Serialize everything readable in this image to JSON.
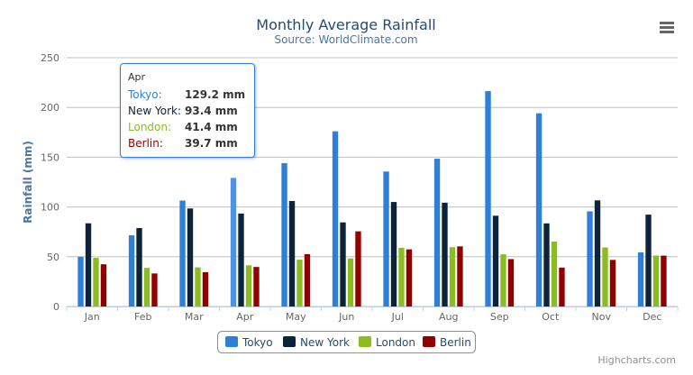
{
  "chart_data": {
    "type": "bar",
    "title": "Monthly Average Rainfall",
    "subtitle": "Source: WorldClimate.com",
    "xlabel": "",
    "ylabel": "Rainfall (mm)",
    "ylim": [
      0,
      250
    ],
    "yticks": [
      "0",
      "50",
      "100",
      "150",
      "200",
      "250"
    ],
    "grid": true,
    "legend_position": "bottom",
    "categories": [
      "Jan",
      "Feb",
      "Mar",
      "Apr",
      "May",
      "Jun",
      "Jul",
      "Aug",
      "Sep",
      "Oct",
      "Nov",
      "Dec"
    ],
    "series": [
      {
        "name": "Tokyo",
        "color": "#2f7ed8",
        "values": [
          49.9,
          71.5,
          106.4,
          129.2,
          144.0,
          176.0,
          135.6,
          148.5,
          216.4,
          194.1,
          95.6,
          54.4
        ]
      },
      {
        "name": "New York",
        "color": "#0d233a",
        "values": [
          83.6,
          78.8,
          98.5,
          93.4,
          106.0,
          84.5,
          105.0,
          104.3,
          91.2,
          83.5,
          106.6,
          92.3
        ]
      },
      {
        "name": "London",
        "color": "#8bbc21",
        "values": [
          48.9,
          38.8,
          39.3,
          41.4,
          47.0,
          48.3,
          59.0,
          59.6,
          52.4,
          65.2,
          59.3,
          51.2
        ]
      },
      {
        "name": "Berlin",
        "color": "#910000",
        "values": [
          42.4,
          33.2,
          34.5,
          39.7,
          52.6,
          75.5,
          57.4,
          60.4,
          47.6,
          39.1,
          46.8,
          51.1
        ]
      }
    ]
  },
  "tooltip": {
    "header": "Apr",
    "rows": [
      {
        "name": "Tokyo:",
        "value": "129.2 mm",
        "color": "#2f7ed8"
      },
      {
        "name": "New York:",
        "value": "93.4 mm",
        "color": "#0d233a"
      },
      {
        "name": "London:",
        "value": "41.4 mm",
        "color": "#8bbc21"
      },
      {
        "name": "Berlin:",
        "value": "39.7 mm",
        "color": "#910000"
      }
    ]
  },
  "credits": "Highcharts.com",
  "menu_icon": "hamburger-menu-icon"
}
